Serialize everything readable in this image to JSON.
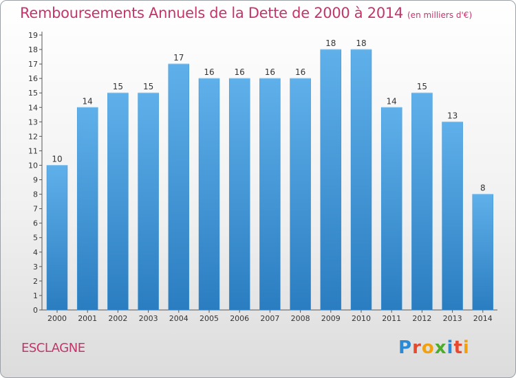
{
  "header": {
    "title": "Remboursements Annuels de la Dette de 2000 à 2014",
    "unit": "(en milliers d'€)"
  },
  "footer": {
    "commune": "ESCLAGNE",
    "logo_text": "Proxiti"
  },
  "colors": {
    "title": "#c2356a",
    "bar_top": "#5fb0ea",
    "bar_bottom": "#2a7dc0",
    "logo_letters": [
      "#2a8ad6",
      "#e64a2e",
      "#f2a00d",
      "#4cad2a",
      "#2a8ad6",
      "#e64a2e",
      "#f2a00d"
    ]
  },
  "chart_data": {
    "type": "bar",
    "categories": [
      "2000",
      "2001",
      "2002",
      "2003",
      "2004",
      "2005",
      "2006",
      "2007",
      "2008",
      "2009",
      "2010",
      "2011",
      "2012",
      "2013",
      "2014"
    ],
    "values": [
      10,
      14,
      15,
      15,
      17,
      16,
      16,
      16,
      16,
      18,
      18,
      14,
      15,
      13,
      8
    ],
    "ylim": [
      0,
      19
    ],
    "yticks": [
      0,
      1,
      2,
      3,
      4,
      5,
      6,
      7,
      8,
      9,
      10,
      11,
      12,
      13,
      14,
      15,
      16,
      17,
      18,
      19
    ],
    "grid": false,
    "legend": "none",
    "data_labels": true
  }
}
